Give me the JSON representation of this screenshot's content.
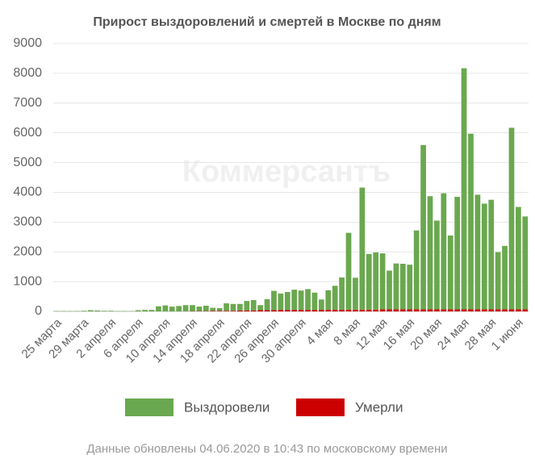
{
  "chart_data": {
    "type": "stacked_bar",
    "title": "Прирост выздоровлений и смертей в Москве по дням",
    "watermark": "Коммерсантъ",
    "note": "Данные обновлены 04.06.2020 в 10:43 по московскому времени",
    "categories": [
      "25 марта",
      null,
      null,
      null,
      "29 марта",
      null,
      null,
      null,
      "2 апреля",
      null,
      null,
      null,
      "6 апреля",
      null,
      null,
      null,
      "10 апреля",
      null,
      null,
      null,
      "14 апреля",
      null,
      null,
      null,
      "18 апреля",
      null,
      null,
      null,
      "22 апреля",
      null,
      null,
      null,
      "26 апреля",
      null,
      null,
      null,
      "30 апреля",
      null,
      null,
      null,
      "4 мая",
      null,
      null,
      null,
      "8 мая",
      null,
      null,
      null,
      "12 мая",
      null,
      null,
      null,
      "16 мая",
      null,
      null,
      null,
      "20 мая",
      null,
      null,
      null,
      "24 мая",
      null,
      null,
      null,
      "28 мая",
      null,
      null,
      null,
      "1 июня",
      null
    ],
    "series": [
      {
        "name": "Выздоровели",
        "color": "#6aa84f",
        "values": [
          10,
          10,
          10,
          10,
          20,
          40,
          30,
          20,
          20,
          10,
          10,
          10,
          40,
          50,
          50,
          170,
          200,
          160,
          180,
          210,
          200,
          150,
          180,
          100,
          90,
          250,
          230,
          220,
          320,
          350,
          170,
          370,
          650,
          550,
          600,
          680,
          650,
          700,
          580,
          350,
          650,
          800,
          1080,
          2580,
          1070,
          4100,
          1870,
          1920,
          1880,
          1300,
          1540,
          1530,
          1500,
          2650,
          5520,
          3800,
          2980,
          3900,
          2480,
          3780,
          8100,
          5900,
          3850,
          3550,
          3680,
          1920,
          2130,
          6100,
          3440,
          3120
        ]
      },
      {
        "name": "Умерли",
        "color": "#cc0000",
        "values": [
          0,
          0,
          0,
          0,
          0,
          0,
          0,
          0,
          0,
          0,
          0,
          0,
          0,
          0,
          0,
          0,
          0,
          0,
          0,
          0,
          10,
          10,
          10,
          20,
          20,
          20,
          20,
          30,
          30,
          30,
          40,
          40,
          40,
          50,
          50,
          50,
          50,
          50,
          50,
          50,
          60,
          60,
          60,
          60,
          60,
          60,
          60,
          60,
          70,
          70,
          70,
          70,
          70,
          70,
          70,
          70,
          70,
          70,
          70,
          70,
          70,
          70,
          70,
          70,
          70,
          70,
          70,
          70,
          70,
          70
        ]
      }
    ],
    "ylim": [
      0,
      9000
    ],
    "yticks": [
      0,
      1000,
      2000,
      3000,
      4000,
      5000,
      6000,
      7000,
      8000,
      9000
    ],
    "grid": true,
    "legend": "bottom"
  }
}
